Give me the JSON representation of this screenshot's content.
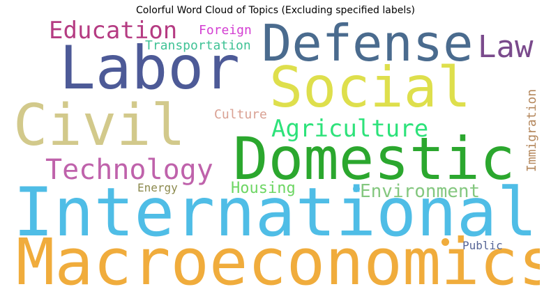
{
  "chart_data": {
    "type": "wordcloud",
    "title": "Colorful Word Cloud of Topics (Excluding specified labels)",
    "words": [
      {
        "text": "International",
        "color": "#4fbde6",
        "rank": 1
      },
      {
        "text": "Macroeconomics",
        "color": "#f0ac3c",
        "rank": 2
      },
      {
        "text": "Domestic",
        "color": "#2ba72e",
        "rank": 3
      },
      {
        "text": "Labor",
        "color": "#4d5a97",
        "rank": 4
      },
      {
        "text": "Civil",
        "color": "#d2c98b",
        "rank": 5
      },
      {
        "text": "Social",
        "color": "#dedf4c",
        "rank": 6
      },
      {
        "text": "Defense",
        "color": "#4a6b8e",
        "rank": 7
      },
      {
        "text": "Technology",
        "color": "#bf62ab",
        "rank": 8
      },
      {
        "text": "Education",
        "color": "#b53b82",
        "rank": 9
      },
      {
        "text": "Law",
        "color": "#7a4a8c",
        "rank": 10
      },
      {
        "text": "Agriculture",
        "color": "#2de27a",
        "rank": 11
      },
      {
        "text": "Environment",
        "color": "#84c77f",
        "rank": 12
      },
      {
        "text": "Housing",
        "color": "#6dd663",
        "rank": 13
      },
      {
        "text": "Immigration",
        "color": "#b4875c",
        "rank": 14
      },
      {
        "text": "Transportation",
        "color": "#3fc295",
        "rank": 15
      },
      {
        "text": "Foreign",
        "color": "#d33ed2",
        "rank": 16
      },
      {
        "text": "Culture",
        "color": "#d9a092",
        "rank": 17
      },
      {
        "text": "Energy",
        "color": "#8c8a4e",
        "rank": 18
      },
      {
        "text": "Public",
        "color": "#566596",
        "rank": 19
      }
    ],
    "marks": [
      {
        "shape": "dot",
        "color": "#4fbde6"
      },
      {
        "shape": "dot",
        "color": "#f0ac3c"
      }
    ]
  }
}
